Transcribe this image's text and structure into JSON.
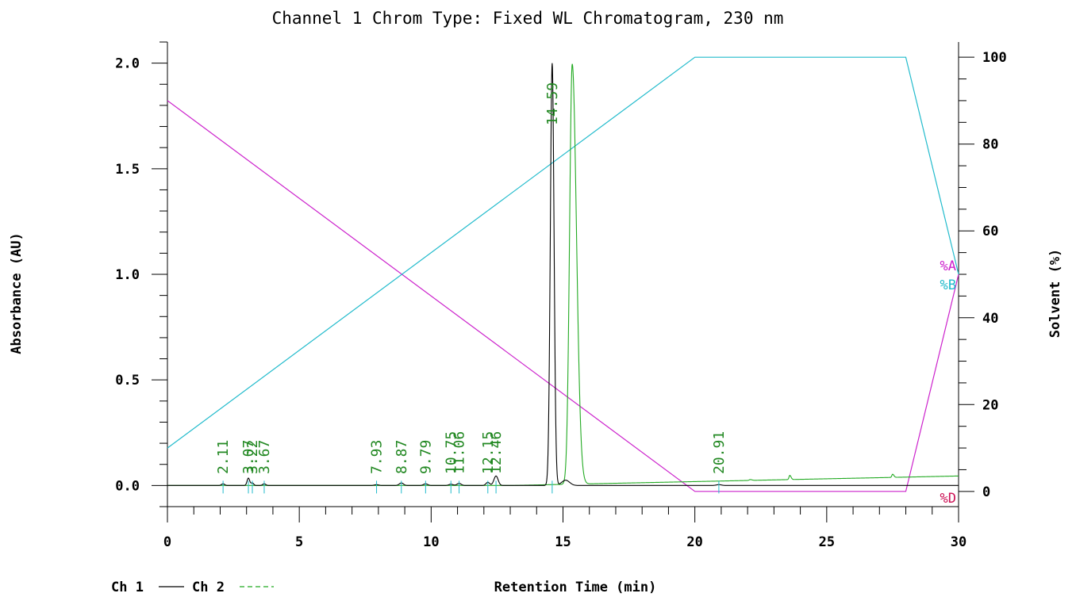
{
  "chart_data": {
    "type": "line",
    "title": "Channel 1 Chrom Type: Fixed WL Chromatogram, 230 nm",
    "xlabel": "Retention Time (min)",
    "ylabel": "Absorbance (AU)",
    "y2label": "Solvent (%)",
    "xlim": [
      0,
      30
    ],
    "ylim": [
      -0.1,
      2.1
    ],
    "y2lim": [
      -3.5,
      103.5
    ],
    "x_ticks": [
      0,
      5,
      10,
      15,
      20,
      25,
      30
    ],
    "y_ticks": [
      "0.0",
      "0.5",
      "1.0",
      "1.5",
      "2.0"
    ],
    "y_tick_values": [
      0.0,
      0.5,
      1.0,
      1.5,
      2.0
    ],
    "y2_ticks": [
      0,
      20,
      40,
      60,
      80,
      100
    ],
    "grid": false,
    "legend_position": "bottom-left",
    "legend": [
      {
        "label": "Ch 1",
        "color": "#000000",
        "dash": "solid"
      },
      {
        "label": "Ch 2",
        "color": "#22aa22",
        "dash": "dashed"
      }
    ],
    "series": [
      {
        "name": "Ch 1",
        "color": "#000000",
        "baseline": 0.0,
        "peaks": [
          {
            "rt": 2.11,
            "height": 0.008,
            "width": 0.06
          },
          {
            "rt": 3.07,
            "height": 0.035,
            "width": 0.05
          },
          {
            "rt": 3.22,
            "height": 0.012,
            "width": 0.05
          },
          {
            "rt": 3.67,
            "height": 0.008,
            "width": 0.06
          },
          {
            "rt": 7.93,
            "height": 0.004,
            "width": 0.08
          },
          {
            "rt": 8.87,
            "height": 0.012,
            "width": 0.08
          },
          {
            "rt": 9.79,
            "height": 0.008,
            "width": 0.08
          },
          {
            "rt": 10.75,
            "height": 0.006,
            "width": 0.08
          },
          {
            "rt": 11.06,
            "height": 0.01,
            "width": 0.08
          },
          {
            "rt": 12.15,
            "height": 0.015,
            "width": 0.07
          },
          {
            "rt": 12.46,
            "height": 0.045,
            "width": 0.08
          },
          {
            "rt": 14.59,
            "height": 2.0,
            "width": 0.07
          },
          {
            "rt": 15.1,
            "height": 0.025,
            "width": 0.15
          },
          {
            "rt": 20.91,
            "height": 0.004,
            "width": 0.1
          }
        ]
      },
      {
        "name": "Ch 2",
        "color": "#22aa22",
        "baseline_start": 0.0,
        "baseline_end": 0.045,
        "drift_start": 13.0,
        "peaks": [
          {
            "rt": 15.35,
            "height": 1.99,
            "width": 0.1
          },
          {
            "rt": 22.1,
            "height": 0.004,
            "width": 0.04
          },
          {
            "rt": 23.6,
            "height": 0.02,
            "width": 0.03
          },
          {
            "rt": 27.5,
            "height": 0.015,
            "width": 0.03
          }
        ]
      }
    ],
    "solvent_gradient": [
      {
        "name": "%A",
        "color": "#cc22cc",
        "points": [
          [
            0,
            90
          ],
          [
            20,
            0
          ],
          [
            28,
            0
          ],
          [
            30,
            50
          ]
        ]
      },
      {
        "name": "%B",
        "color": "#22bbcc",
        "points": [
          [
            0,
            10
          ],
          [
            20,
            100
          ],
          [
            28,
            100
          ],
          [
            30,
            50
          ]
        ]
      },
      {
        "name": "%D",
        "color": "#cc1155",
        "points": [
          [
            30,
            0
          ]
        ]
      }
    ],
    "peak_labels": [
      "2.11",
      "3.07",
      "3.22",
      "3.67",
      "7.93",
      "8.87",
      "9.79",
      "10.75",
      "11.06",
      "12.15",
      "12.46",
      "14.59",
      "20.91"
    ],
    "peak_label_values": [
      2.11,
      3.07,
      3.22,
      3.67,
      7.93,
      8.87,
      9.79,
      10.75,
      11.06,
      12.15,
      12.46,
      14.59,
      20.91
    ],
    "label_color": "#228822"
  }
}
